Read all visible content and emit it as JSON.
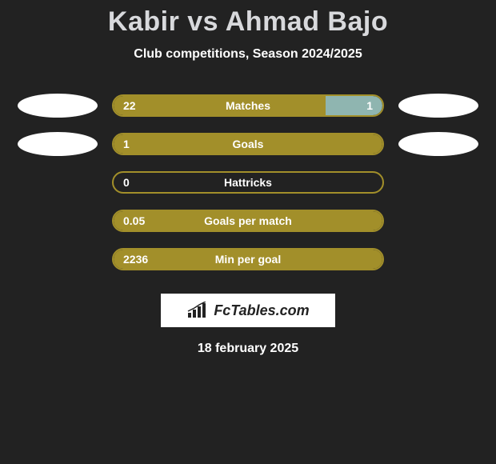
{
  "title": "Kabir vs Ahmad Bajo",
  "subtitle": "Club competitions, Season 2024/2025",
  "colors": {
    "background": "#222222",
    "left_fill": "#a28f2a",
    "right_fill": "#8fb5b0",
    "border": "#a28f2a",
    "oval": "#ffffff",
    "text": "#ffffff",
    "title_color": "#d8d9dc"
  },
  "stats": [
    {
      "label": "Matches",
      "left_value": "22",
      "right_value": "1",
      "left_pct": 79,
      "right_pct": 21,
      "show_right": true,
      "show_ovals": true
    },
    {
      "label": "Goals",
      "left_value": "1",
      "right_value": "",
      "left_pct": 100,
      "right_pct": 0,
      "show_right": false,
      "show_ovals": true
    },
    {
      "label": "Hattricks",
      "left_value": "0",
      "right_value": "",
      "left_pct": 0,
      "right_pct": 0,
      "show_right": false,
      "show_ovals": false
    },
    {
      "label": "Goals per match",
      "left_value": "0.05",
      "right_value": "",
      "left_pct": 100,
      "right_pct": 0,
      "show_right": false,
      "show_ovals": false
    },
    {
      "label": "Min per goal",
      "left_value": "2236",
      "right_value": "",
      "left_pct": 100,
      "right_pct": 0,
      "show_right": false,
      "show_ovals": false
    }
  ],
  "logo_text": "FcTables.com",
  "date": "18 february 2025"
}
